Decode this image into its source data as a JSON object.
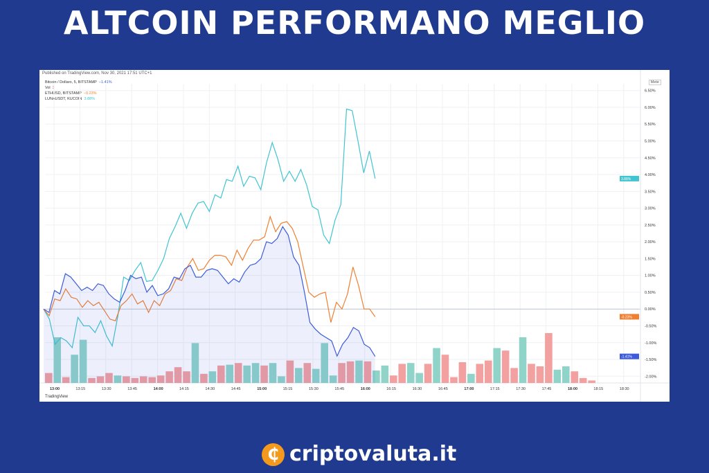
{
  "header": {
    "title": "ALTCOIN PERFORMANO MEGLIO"
  },
  "panel": {
    "published": "Published on TradingView.com, Nov 30, 2021 17:51 UTC+1",
    "unit_button": "Mete",
    "brand": "TradingView"
  },
  "legend": [
    {
      "label": "Bitcoin / Dollaro, 5, BITSTAMP",
      "change": "−1.41%",
      "color": "#3b5bdb"
    },
    {
      "label": "Vol",
      "change": "3",
      "color": "#e05050"
    },
    {
      "label": "ETHUSD, BITSTAMP",
      "change": "−0.23%",
      "color": "#f07f30"
    },
    {
      "label": "LUNAUSDT, KUCOIN",
      "change": "3.88%",
      "color": "#40c4d0"
    }
  ],
  "footer": {
    "logo_glyph": "₵",
    "brand": "criptovaluta.it"
  },
  "chart_data": {
    "type": "line",
    "x_ticks": [
      "13:00",
      "13:15",
      "13:30",
      "13:45",
      "14:00",
      "14:15",
      "14:30",
      "14:45",
      "15:00",
      "15:15",
      "15:30",
      "15:45",
      "16:00",
      "16:15",
      "16:30",
      "16:45",
      "17:00",
      "17:15",
      "17:30",
      "17:45",
      "18:00",
      "18:15",
      "18:30"
    ],
    "bold_ticks": [
      "13:00",
      "14:00",
      "15:00",
      "16:00",
      "17:00",
      "18:00"
    ],
    "y_ticks": [
      6.5,
      6.0,
      5.5,
      5.0,
      4.5,
      4.0,
      3.5,
      3.0,
      2.5,
      2.0,
      1.5,
      1.0,
      0.5,
      0.0,
      -0.5,
      -1.0,
      -1.5,
      -2.0
    ],
    "y_tick_labels": [
      "6.50%",
      "6.00%",
      "5.50%",
      "5.00%",
      "4.50%",
      "4.00%",
      "3.50%",
      "3.00%",
      "2.50%",
      "2.00%",
      "1.50%",
      "1.00%",
      "0.50%",
      "0.00%",
      "-0.50%",
      "-1.00%",
      "-1.50%",
      "-2.00%"
    ],
    "ylim": [
      -2.2,
      6.7
    ],
    "x_range_minutes": [
      0,
      345
    ],
    "series": [
      {
        "name": "LUNAUSDT, KUCOIN",
        "color": "#40c4d0",
        "last_label": "3.88%",
        "values": [
          0.0,
          -0.3,
          -1.05,
          -0.85,
          -0.95,
          -1.15,
          -0.25,
          -0.5,
          -0.5,
          -0.7,
          -0.35,
          -0.8,
          -1.1,
          -0.2,
          0.95,
          0.85,
          1.15,
          1.38,
          0.82,
          0.85,
          1.15,
          1.5,
          2.1,
          2.45,
          2.85,
          2.4,
          2.85,
          3.15,
          3.2,
          2.9,
          3.4,
          3.3,
          3.85,
          3.8,
          4.25,
          3.65,
          3.95,
          3.9,
          3.55,
          4.35,
          4.95,
          4.45,
          3.8,
          4.1,
          3.8,
          4.15,
          3.7,
          3.05,
          2.95,
          2.2,
          1.95,
          2.65,
          3.1,
          5.95,
          5.9,
          5.0,
          4.05,
          4.7,
          3.88
        ]
      },
      {
        "name": "ETHUSD, BITSTAMP",
        "color": "#f07f30",
        "last_label": "-0.23%",
        "values": [
          0.0,
          -0.2,
          0.3,
          0.25,
          0.6,
          0.35,
          0.3,
          0.05,
          0.25,
          0.1,
          0.2,
          -0.05,
          -0.3,
          -0.35,
          0.1,
          0.25,
          0.45,
          0.15,
          0.25,
          -0.1,
          0.25,
          0.1,
          0.45,
          0.55,
          0.9,
          0.85,
          1.25,
          1.5,
          1.15,
          1.2,
          1.45,
          1.6,
          1.6,
          1.55,
          1.3,
          1.75,
          1.45,
          1.8,
          2.05,
          2.05,
          2.15,
          2.75,
          2.3,
          2.55,
          2.6,
          2.4,
          2.0,
          1.25,
          0.5,
          0.35,
          0.45,
          0.5,
          -0.4,
          0.2,
          0.0,
          0.45,
          1.25,
          0.7,
          0.0,
          0.0,
          -0.23
        ]
      },
      {
        "name": "Bitcoin / Dollaro, 5, BITSTAMP",
        "color": "#3b5bdb",
        "last_label": "-1.41%",
        "area": true,
        "values": [
          0.0,
          -0.1,
          0.55,
          0.45,
          1.05,
          0.95,
          0.75,
          0.55,
          0.65,
          0.55,
          0.75,
          0.7,
          0.45,
          0.3,
          0.2,
          0.55,
          1.0,
          0.9,
          0.95,
          0.5,
          0.7,
          0.4,
          0.45,
          0.6,
          0.95,
          0.9,
          1.2,
          1.3,
          0.95,
          0.95,
          1.15,
          1.2,
          1.15,
          0.95,
          0.75,
          0.9,
          0.8,
          1.1,
          1.3,
          1.35,
          1.5,
          2.0,
          1.95,
          2.1,
          2.45,
          2.2,
          1.55,
          1.3,
          0.5,
          -0.4,
          -0.6,
          -0.75,
          -0.85,
          -0.95,
          -1.4,
          -1.05,
          -0.85,
          -0.55,
          -0.65,
          -1.05,
          -1.15,
          -1.41
        ]
      }
    ],
    "volume": {
      "name": "Vol",
      "values": [
        12,
        55,
        7,
        34,
        52,
        6,
        8,
        12,
        9,
        8,
        6,
        8,
        7,
        9,
        14,
        19,
        14,
        48,
        11,
        14,
        21,
        22,
        24,
        21,
        24,
        21,
        24,
        8,
        27,
        18,
        24,
        17,
        48,
        9,
        24,
        26,
        27,
        26,
        15,
        21,
        9,
        23,
        24,
        12,
        23,
        42,
        34,
        7,
        25,
        11,
        23,
        27,
        42,
        39,
        18,
        55,
        23,
        20,
        60,
        16,
        20,
        14,
        6,
        3
      ],
      "up": [
        false,
        true,
        false,
        true,
        true,
        false,
        false,
        false,
        true,
        false,
        false,
        false,
        false,
        false,
        false,
        false,
        false,
        true,
        false,
        true,
        false,
        true,
        false,
        true,
        true,
        false,
        true,
        true,
        false,
        true,
        false,
        true,
        true,
        true,
        false,
        false,
        true,
        false,
        true,
        true,
        false,
        false,
        true,
        true,
        false,
        true,
        false,
        false,
        false,
        true,
        false,
        false,
        true,
        false,
        false,
        true,
        false,
        false,
        false,
        true,
        true,
        false,
        false,
        false
      ],
      "up_color": "#8fd3c9",
      "down_color": "#f2a0a0"
    }
  }
}
